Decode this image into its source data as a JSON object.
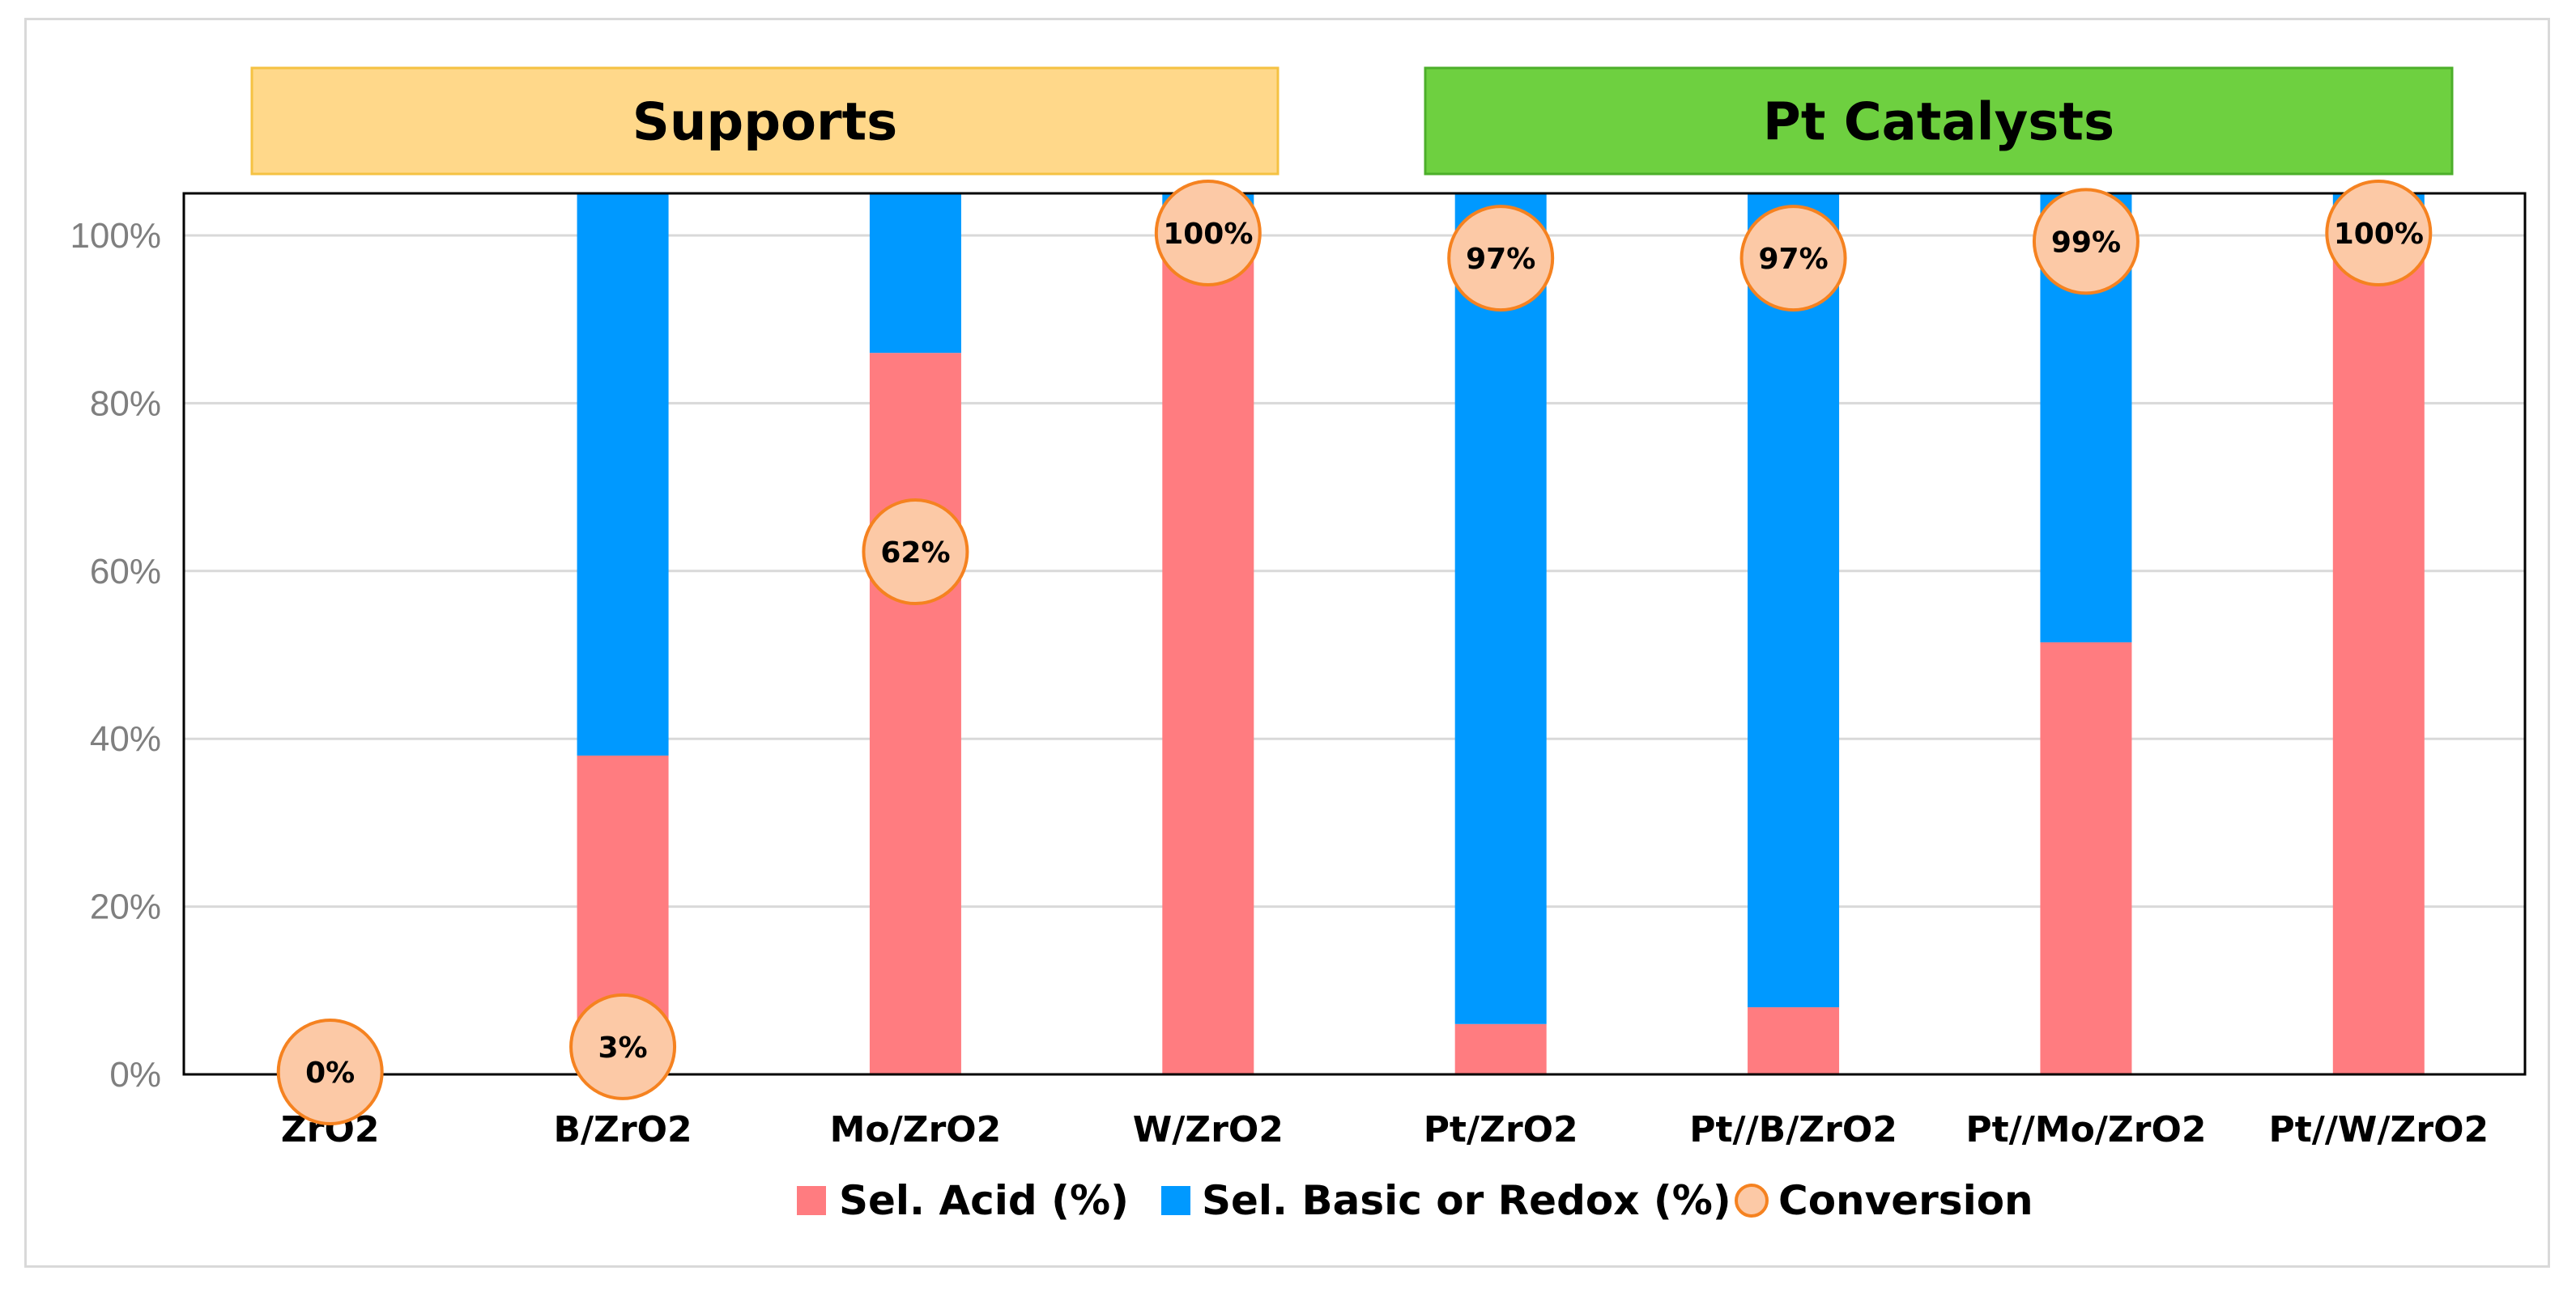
{
  "chart_data": {
    "type": "bar",
    "stacked": true,
    "categories": [
      "ZrO2",
      "B/ZrO2",
      "Mo/ZrO2",
      "W/ZrO2",
      "Pt/ZrO2",
      "Pt//B/ZrO2",
      "Pt//Mo/ZrO2",
      "Pt//W/ZrO2"
    ],
    "series": [
      {
        "name": "Sel. Acid (%)",
        "color": "#ff7c80",
        "values": [
          0,
          38,
          86,
          100,
          6,
          8,
          51.5,
          100
        ]
      },
      {
        "name": "Sel. Basic or Redox (%)",
        "color": "#0099ff",
        "values": [
          0,
          67,
          19,
          5,
          99,
          97,
          53.5,
          5
        ]
      }
    ],
    "conversion": {
      "name": "Conversion",
      "fill": "#fcc9a6",
      "stroke": "#f58220",
      "values": [
        0,
        3,
        62,
        100,
        97,
        97,
        99,
        100
      ],
      "labels": [
        "0%",
        "3%",
        "62%",
        "100%",
        "97%",
        "97%",
        "99%",
        "100%"
      ]
    },
    "ylim": [
      0,
      105
    ],
    "yticks": [
      0,
      20,
      40,
      60,
      80,
      100
    ],
    "ytick_labels": [
      "0%",
      "20%",
      "40%",
      "60%",
      "80%",
      "100%"
    ],
    "grid": true,
    "groups": [
      {
        "label": "Supports",
        "fill": "#ffd88a",
        "stroke": "#f5c242",
        "categories": [
          "ZrO2",
          "B/ZrO2",
          "Mo/ZrO2",
          "W/ZrO2"
        ]
      },
      {
        "label": "Pt Catalysts",
        "fill": "#6ed040",
        "stroke": "#4caf2a",
        "categories": [
          "Pt/ZrO2",
          "Pt//B/ZrO2",
          "Pt//Mo/ZrO2",
          "Pt//W/ZrO2"
        ]
      }
    ],
    "legend": {
      "position": "bottom",
      "entries": [
        "Sel. Acid (%)",
        "Sel. Basic or Redox (%)",
        "Conversion"
      ]
    }
  }
}
